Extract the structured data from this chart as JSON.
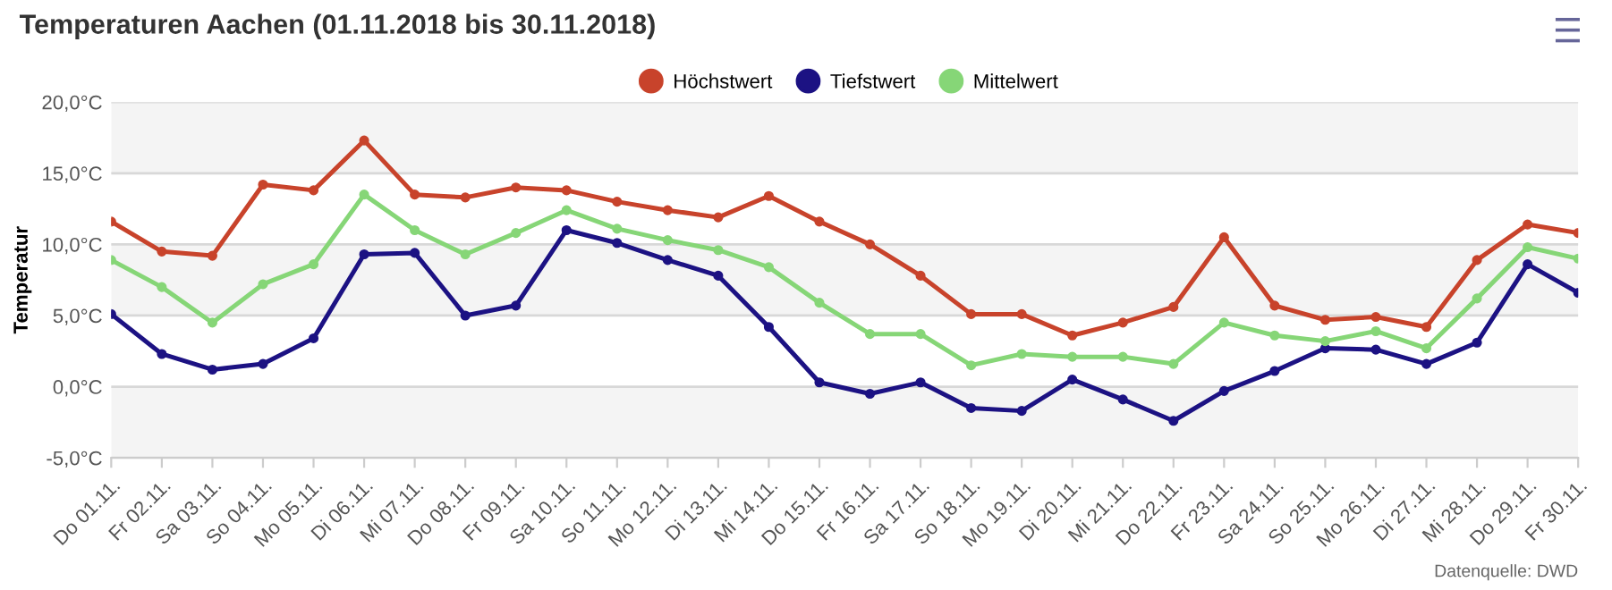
{
  "chart_data": {
    "type": "line",
    "title": "Temperaturen Aachen (01.11.2018 bis 30.11.2018)",
    "ylabel": "Temperatur",
    "categories": [
      "Do 01.11.",
      "Fr 02.11.",
      "Sa 03.11.",
      "So 04.11.",
      "Mo 05.11.",
      "Di 06.11.",
      "Mi 07.11.",
      "Do 08.11.",
      "Fr 09.11.",
      "Sa 10.11.",
      "So 11.11.",
      "Mo 12.11.",
      "Di 13.11.",
      "Mi 14.11.",
      "Do 15.11.",
      "Fr 16.11.",
      "Sa 17.11.",
      "So 18.11.",
      "Mo 19.11.",
      "Di 20.11.",
      "Mi 21.11.",
      "Do 22.11.",
      "Fr 23.11.",
      "Sa 24.11.",
      "So 25.11.",
      "Mo 26.11.",
      "Di 27.11.",
      "Mi 28.11.",
      "Do 29.11.",
      "Fr 30.11."
    ],
    "series": [
      {
        "name": "Höchstwert",
        "color": "#c8432b",
        "values": [
          11.6,
          9.5,
          9.2,
          14.2,
          13.8,
          17.3,
          13.5,
          13.3,
          14.0,
          13.8,
          13.0,
          12.4,
          11.9,
          13.4,
          11.6,
          10.0,
          7.8,
          5.1,
          5.1,
          3.6,
          4.5,
          5.6,
          10.5,
          5.7,
          4.7,
          4.9,
          4.2,
          8.9,
          11.4,
          10.8
        ]
      },
      {
        "name": "Tiefstwert",
        "color": "#1c1283",
        "values": [
          5.1,
          2.3,
          1.2,
          1.6,
          3.4,
          9.3,
          9.4,
          5.0,
          5.7,
          11.0,
          10.1,
          8.9,
          7.8,
          4.2,
          0.3,
          -0.5,
          0.3,
          -1.5,
          -1.7,
          0.5,
          -0.9,
          -2.4,
          -0.3,
          1.1,
          2.7,
          2.6,
          1.6,
          3.1,
          8.6,
          6.6
        ]
      },
      {
        "name": "Mittelwert",
        "color": "#86d677",
        "values": [
          8.9,
          7.0,
          4.5,
          7.2,
          8.6,
          13.5,
          11.0,
          9.3,
          10.8,
          12.4,
          11.1,
          10.3,
          9.6,
          8.4,
          5.9,
          3.7,
          3.7,
          1.5,
          2.3,
          2.1,
          2.1,
          1.6,
          4.5,
          3.6,
          3.2,
          3.9,
          2.7,
          6.2,
          9.8,
          9.0
        ]
      }
    ],
    "ylim": [
      -5,
      20
    ],
    "yticks": [
      {
        "value": -5,
        "label": "-5,0°C"
      },
      {
        "value": 0,
        "label": "0,0°C"
      },
      {
        "value": 5,
        "label": "5,0°C"
      },
      {
        "value": 10,
        "label": "10,0°C"
      },
      {
        "value": 15,
        "label": "15,0°C"
      },
      {
        "value": 20,
        "label": "20,0°C"
      }
    ],
    "bands": [
      {
        "axis": "y",
        "from": -5,
        "to": 0,
        "color": "#f4f4f4"
      },
      {
        "axis": "y",
        "from": 5,
        "to": 10,
        "color": "#f4f4f4"
      },
      {
        "axis": "y",
        "from": 15,
        "to": 20,
        "color": "#f4f4f4"
      }
    ],
    "grid": "y",
    "legend": "top",
    "marker": "circle",
    "line_style": "solid",
    "annotations": [
      "Datenquelle: DWD"
    ]
  }
}
